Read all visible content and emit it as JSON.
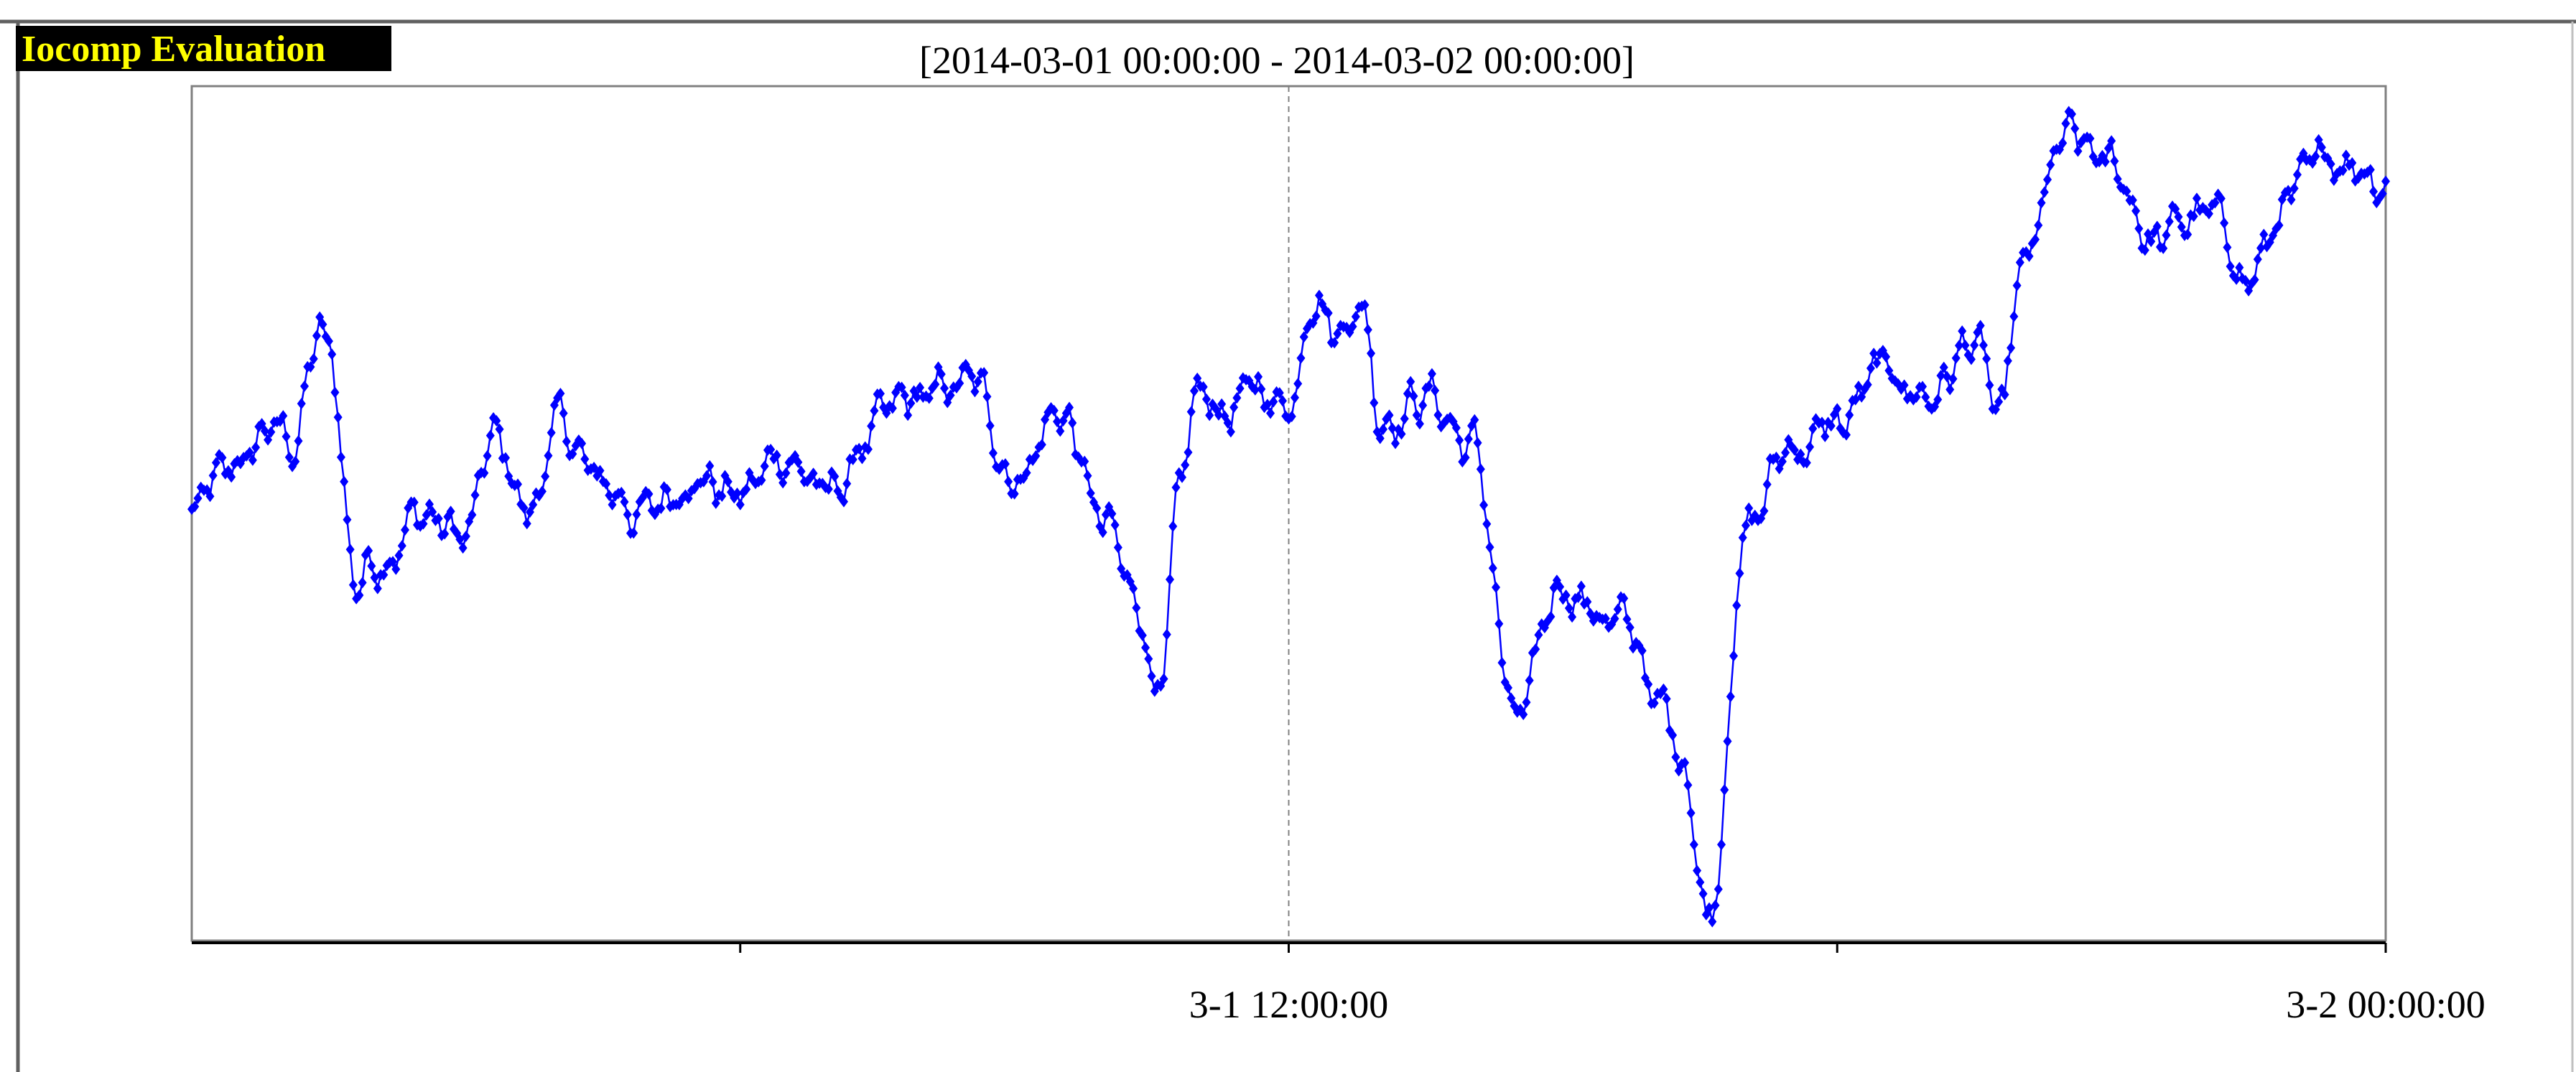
{
  "watermark": {
    "text": "Iocomp Evaluation",
    "text_color": "#ffff00",
    "background_color": "#000000"
  },
  "colors": {
    "series": "#0000ff",
    "axis": "#000000",
    "frame": "#808080",
    "gridline": "#808080"
  },
  "chart_data": {
    "type": "line",
    "title": "[2014-03-01 00:00:00 - 2014-03-02 00:00:00]",
    "xlabel": "",
    "ylabel": "",
    "x_range": [
      "2014-03-01 00:00:00",
      "2014-03-02 00:00:00"
    ],
    "y_range": [
      0,
      100
    ],
    "y_tick_labels_shown": false,
    "grid": "vertical dashed lines at labeled x ticks",
    "marker": "diamond",
    "x_ticks": [
      {
        "time": "2014-03-01 06:00:00",
        "label": ""
      },
      {
        "time": "2014-03-01 12:00:00",
        "label": "3-1 12:00:00"
      },
      {
        "time": "2014-03-01 18:00:00",
        "label": ""
      },
      {
        "time": "2014-03-02 00:00:00",
        "label": "3-2 00:00:00"
      }
    ],
    "series": [
      {
        "time_start": "2014-03-01 00:00:00",
        "time_step_minutes": 2,
        "description_anchors_hours": [
          0,
          0.3,
          0.6,
          0.85,
          1.1,
          1.4,
          1.5,
          1.8,
          2.0,
          2.5,
          3.0,
          3.3,
          3.7,
          4.0,
          4.5,
          5.0,
          5.5,
          6.0,
          6.5,
          7.0,
          7.5,
          8.0,
          8.5,
          9.0,
          9.5,
          10.0,
          10.3,
          10.6,
          10.8,
          11.0,
          11.3,
          11.6,
          12.0,
          12.3,
          12.5,
          12.8,
          13.0,
          13.5,
          14.0,
          14.5,
          15.0,
          15.5,
          15.8,
          16.0,
          16.3,
          16.6,
          17.0,
          17.5,
          18.0,
          18.5,
          19.0,
          19.5,
          19.8,
          20.0,
          20.5,
          21.0,
          21.5,
          22.0,
          22.5,
          23.0,
          23.5,
          24.0
        ],
        "description_anchors_values": [
          50,
          53,
          56,
          60,
          58,
          71,
          68,
          42,
          45,
          50,
          47,
          58,
          50,
          60,
          53,
          50,
          55,
          52,
          57,
          52,
          60,
          63,
          65,
          55,
          62,
          48,
          40,
          30,
          50,
          63,
          62,
          64,
          63,
          78,
          72,
          75,
          62,
          64,
          58,
          25,
          42,
          38,
          35,
          28,
          22,
          3,
          48,
          58,
          60,
          66,
          64,
          70,
          60,
          77,
          93,
          90,
          82,
          85,
          78,
          87,
          92,
          90
        ]
      }
    ]
  }
}
